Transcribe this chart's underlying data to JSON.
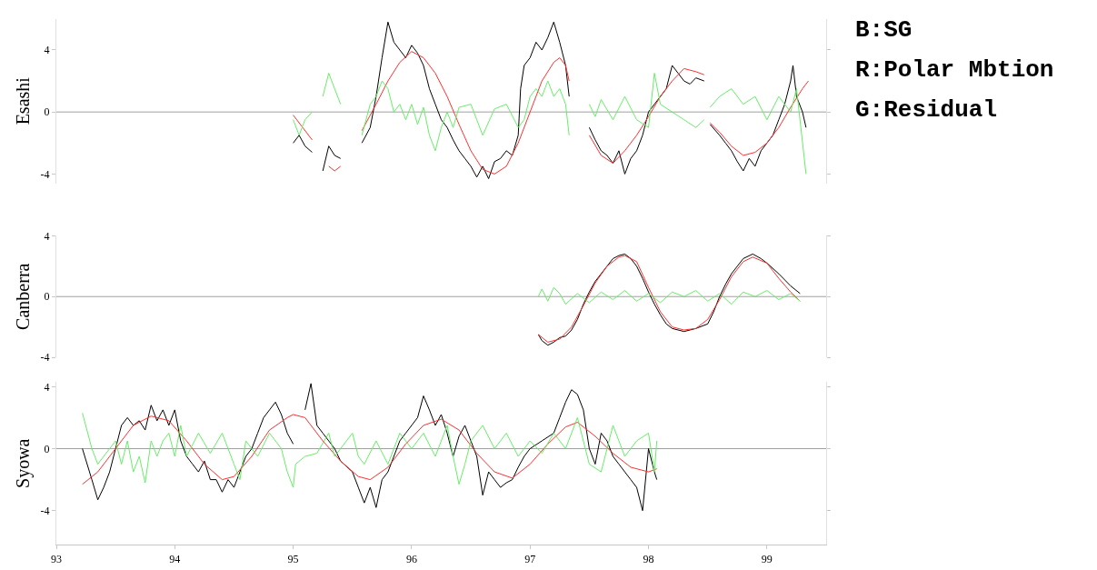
{
  "chart_data": [
    {
      "type": "line",
      "ylabel": "Esashi",
      "xlim": [
        93,
        99.5
      ],
      "ylim": [
        -4.6,
        6
      ],
      "yticks": [
        -4,
        0,
        4
      ],
      "xticks": [
        93,
        94,
        95,
        96,
        97,
        98,
        99
      ],
      "tick_labels": "y",
      "grid": false,
      "annotations": [
        "B:SG",
        "R:Polar Mbtion",
        "G:Residual"
      ],
      "ref_lines": [
        {
          "axis": "y",
          "value": 0,
          "color": "#a0a0a0"
        }
      ],
      "series": [
        {
          "color": "#000000",
          "x": [
            95.0,
            95.05,
            95.1,
            95.16,
            95.2,
            95.25,
            95.3,
            95.35,
            95.4,
            95.5,
            95.58,
            95.65,
            95.7,
            95.75,
            95.8,
            95.85,
            95.9,
            95.95,
            96.0,
            96.05,
            96.1,
            96.15,
            96.2,
            96.25,
            96.3,
            96.35,
            96.4,
            96.45,
            96.5,
            96.55,
            96.6,
            96.65,
            96.7,
            96.75,
            96.8,
            96.85,
            96.9,
            96.92,
            96.95,
            97.0,
            97.05,
            97.1,
            97.15,
            97.2,
            97.25,
            97.3,
            97.33,
            97.4,
            97.5,
            97.55,
            97.6,
            97.65,
            97.7,
            97.75,
            97.8,
            97.85,
            97.9,
            97.95,
            98.0,
            98.05,
            98.1,
            98.15,
            98.2,
            98.25,
            98.3,
            98.35,
            98.4,
            98.47,
            98.5,
            98.52,
            98.6,
            98.65,
            98.7,
            98.75,
            98.8,
            98.85,
            98.9,
            98.95,
            99.0,
            99.05,
            99.1,
            99.15,
            99.2,
            99.22,
            99.25,
            99.3,
            99.33
          ],
          "values": [
            -2.0,
            -1.5,
            -2.2,
            -2.6,
            null,
            -3.8,
            -2.2,
            -2.8,
            -3.0,
            null,
            -2.0,
            -1.0,
            1.0,
            3.5,
            5.8,
            4.5,
            4.0,
            3.5,
            4.3,
            3.8,
            3.0,
            1.5,
            0.5,
            -0.5,
            -1.0,
            -1.8,
            -2.5,
            -3.0,
            -3.5,
            -4.2,
            -3.5,
            -4.3,
            -3.2,
            -3.0,
            -2.5,
            -2.8,
            -1.5,
            1.5,
            3.0,
            3.5,
            4.5,
            4.0,
            4.8,
            5.8,
            4.5,
            3.0,
            1.0,
            null,
            -1.0,
            -1.8,
            -2.5,
            -2.8,
            -3.3,
            -2.5,
            -4.0,
            -3.0,
            -2.5,
            -1.5,
            0.0,
            0.5,
            1.0,
            1.5,
            3.0,
            2.5,
            2.0,
            1.8,
            2.2,
            2.0,
            null,
            -0.8,
            -1.5,
            -2.0,
            -2.5,
            -3.2,
            -3.8,
            -3.0,
            -3.5,
            -2.5,
            -2.0,
            -1.5,
            -0.5,
            0.5,
            2.0,
            3.0,
            1.0,
            0.0,
            -1.0
          ]
        },
        {
          "color": "#ff3030",
          "x": [
            95.0,
            95.08,
            95.16,
            95.2,
            95.3,
            95.35,
            95.4,
            95.5,
            95.58,
            95.7,
            95.8,
            95.9,
            96.0,
            96.1,
            96.2,
            96.3,
            96.4,
            96.5,
            96.6,
            96.7,
            96.8,
            96.9,
            97.0,
            97.1,
            97.2,
            97.25,
            97.3,
            97.33,
            97.4,
            97.5,
            97.6,
            97.7,
            97.8,
            97.9,
            98.0,
            98.1,
            98.2,
            98.3,
            98.4,
            98.47,
            98.5,
            98.52,
            98.6,
            98.7,
            98.8,
            98.9,
            99.0,
            99.1,
            99.2,
            99.3,
            99.35
          ],
          "values": [
            -0.2,
            -1.0,
            -1.8,
            null,
            -3.5,
            -3.8,
            -3.5,
            null,
            -1.2,
            0.5,
            2.0,
            3.2,
            3.9,
            3.5,
            2.5,
            1.0,
            -0.8,
            -2.5,
            -3.7,
            -4.0,
            -3.5,
            -2.0,
            0.0,
            2.0,
            3.2,
            3.5,
            3.0,
            2.0,
            null,
            -1.5,
            -2.8,
            -3.3,
            -2.5,
            -1.5,
            -0.3,
            1.0,
            2.0,
            2.8,
            2.6,
            2.4,
            null,
            -0.7,
            -1.3,
            -2.2,
            -2.8,
            -2.6,
            -2.0,
            -1.0,
            0.3,
            1.5,
            2.0
          ]
        },
        {
          "color": "#66ee66",
          "x": [
            95.0,
            95.05,
            95.1,
            95.16,
            95.2,
            95.25,
            95.3,
            95.35,
            95.4,
            95.5,
            95.58,
            95.65,
            95.7,
            95.75,
            95.8,
            95.85,
            95.9,
            95.95,
            96.0,
            96.05,
            96.1,
            96.15,
            96.2,
            96.25,
            96.3,
            96.35,
            96.4,
            96.5,
            96.55,
            96.6,
            96.7,
            96.8,
            96.9,
            96.95,
            97.0,
            97.05,
            97.1,
            97.15,
            97.2,
            97.25,
            97.3,
            97.33,
            97.4,
            97.5,
            97.55,
            97.6,
            97.7,
            97.8,
            97.9,
            98.0,
            98.05,
            98.1,
            98.2,
            98.3,
            98.4,
            98.47,
            98.5,
            98.52,
            98.6,
            98.7,
            98.8,
            98.9,
            99.0,
            99.1,
            99.2,
            99.25,
            99.33
          ],
          "values": [
            -0.5,
            -1.5,
            -0.5,
            0.0,
            null,
            1.0,
            2.5,
            1.5,
            0.5,
            null,
            -1.5,
            0.5,
            1.0,
            2.0,
            1.5,
            0.0,
            0.5,
            -0.5,
            0.5,
            -0.8,
            0.3,
            -1.5,
            -2.5,
            -1.0,
            0.0,
            -1.0,
            0.3,
            0.5,
            -0.5,
            -1.5,
            0.2,
            0.5,
            -1.0,
            -0.5,
            1.0,
            1.5,
            1.0,
            2.0,
            1.0,
            1.5,
            0.5,
            -1.5,
            null,
            0.5,
            -0.3,
            0.8,
            -0.5,
            1.0,
            -0.5,
            -1.0,
            2.5,
            0.5,
            0.0,
            -0.5,
            -1.0,
            -0.5,
            null,
            0.3,
            1.0,
            1.5,
            0.5,
            1.0,
            -0.5,
            1.0,
            0.0,
            1.5,
            -4.0
          ]
        }
      ]
    },
    {
      "type": "line",
      "ylabel": "Canberra",
      "xlim": [
        93,
        99.5
      ],
      "ylim": [
        -4,
        4
      ],
      "yticks": [
        -4,
        0,
        4
      ],
      "xticks": [
        93,
        94,
        95,
        96,
        97,
        98,
        99
      ],
      "tick_labels": "y",
      "grid": false,
      "ref_lines": [
        {
          "axis": "y",
          "value": 0,
          "color": "#a0a0a0"
        }
      ],
      "series": [
        {
          "color": "#000000",
          "x": [
            97.07,
            97.1,
            97.15,
            97.2,
            97.25,
            97.3,
            97.35,
            97.4,
            97.45,
            97.5,
            97.55,
            97.6,
            97.65,
            97.7,
            97.75,
            97.8,
            97.85,
            97.9,
            97.95,
            98.0,
            98.05,
            98.1,
            98.15,
            98.2,
            98.3,
            98.4,
            98.5,
            98.55,
            98.6,
            98.65,
            98.7,
            98.75,
            98.8,
            98.88,
            98.95,
            99.0,
            99.1,
            99.2,
            99.28
          ],
          "values": [
            -2.5,
            -2.9,
            -3.2,
            -3.0,
            -2.7,
            -2.6,
            -2.2,
            -1.5,
            -0.5,
            0.3,
            1.0,
            1.5,
            2.0,
            2.5,
            2.7,
            2.8,
            2.5,
            2.0,
            1.2,
            0.3,
            -0.5,
            -1.2,
            -1.8,
            -2.1,
            -2.3,
            -2.1,
            -1.8,
            -1.0,
            0.0,
            0.8,
            1.5,
            2.0,
            2.5,
            2.8,
            2.5,
            2.2,
            1.5,
            0.7,
            0.2
          ]
        },
        {
          "color": "#ff3030",
          "x": [
            97.07,
            97.15,
            97.25,
            97.35,
            97.45,
            97.55,
            97.65,
            97.75,
            97.8,
            97.9,
            98.0,
            98.1,
            98.2,
            98.3,
            98.4,
            98.5,
            98.6,
            98.7,
            98.8,
            98.88,
            99.0,
            99.1,
            99.2,
            99.28
          ],
          "values": [
            -2.5,
            -3.0,
            -2.8,
            -2.0,
            -0.6,
            0.9,
            2.0,
            2.6,
            2.7,
            2.3,
            0.6,
            -1.0,
            -2.0,
            -2.2,
            -2.1,
            -1.5,
            -0.2,
            1.3,
            2.3,
            2.6,
            2.2,
            1.2,
            0.3,
            -0.3
          ]
        },
        {
          "color": "#66ee66",
          "x": [
            97.07,
            97.1,
            97.15,
            97.2,
            97.25,
            97.3,
            97.4,
            97.5,
            97.6,
            97.7,
            97.8,
            97.9,
            98.0,
            98.1,
            98.2,
            98.3,
            98.4,
            98.5,
            98.6,
            98.7,
            98.8,
            98.9,
            99.0,
            99.1,
            99.2,
            99.28
          ],
          "values": [
            0.0,
            0.5,
            -0.3,
            0.6,
            0.2,
            -0.5,
            0.2,
            -0.4,
            0.3,
            -0.2,
            0.4,
            -0.3,
            0.2,
            -0.4,
            0.3,
            0.0,
            0.4,
            -0.3,
            0.2,
            -0.5,
            0.3,
            0.0,
            0.4,
            -0.2,
            0.2,
            -0.3
          ]
        }
      ]
    },
    {
      "type": "line",
      "ylabel": "Syowa",
      "xlim": [
        93,
        99.5
      ],
      "ylim": [
        -6.2,
        4.3
      ],
      "yticks": [
        -4,
        0,
        4
      ],
      "xticks": [
        93,
        94,
        95,
        96,
        97,
        98,
        99
      ],
      "grid": false,
      "ref_lines": [
        {
          "axis": "y",
          "value": 0,
          "color": "#a0a0a0"
        }
      ],
      "series": [
        {
          "color": "#000000",
          "x": [
            93.22,
            93.3,
            93.35,
            93.4,
            93.45,
            93.5,
            93.55,
            93.6,
            93.65,
            93.7,
            93.75,
            93.8,
            93.85,
            93.9,
            93.95,
            94.0,
            94.05,
            94.1,
            94.15,
            94.2,
            94.25,
            94.3,
            94.35,
            94.4,
            94.45,
            94.5,
            94.55,
            94.6,
            94.65,
            94.7,
            94.75,
            94.8,
            94.85,
            94.9,
            94.95,
            95.0,
            95.05,
            95.1,
            95.15,
            95.2,
            95.25,
            95.3,
            95.35,
            95.4,
            95.5,
            95.55,
            95.6,
            95.65,
            95.7,
            95.75,
            95.8,
            95.85,
            95.9,
            95.95,
            96.0,
            96.05,
            96.1,
            96.15,
            96.2,
            96.25,
            96.3,
            96.35,
            96.4,
            96.45,
            96.5,
            96.55,
            96.6,
            96.65,
            96.7,
            96.75,
            96.8,
            96.85,
            96.9,
            96.95,
            97.0,
            97.1,
            97.2,
            97.25,
            97.3,
            97.35,
            97.4,
            97.45,
            97.5,
            97.55,
            97.6,
            97.65,
            97.7,
            97.75,
            97.8,
            97.85,
            97.9,
            97.95,
            98.0,
            98.05,
            98.07
          ],
          "values": [
            0.0,
            -2.0,
            -3.3,
            -2.5,
            -1.5,
            0.0,
            1.5,
            2.0,
            1.5,
            1.8,
            1.2,
            2.8,
            1.8,
            2.5,
            1.5,
            2.5,
            0.5,
            -0.5,
            -1.0,
            -1.5,
            -0.8,
            -2.0,
            -2.0,
            -2.8,
            -2.0,
            -2.5,
            -1.5,
            -0.5,
            0.0,
            1.0,
            2.0,
            2.5,
            3.0,
            2.2,
            1.0,
            0.3,
            null,
            2.5,
            4.2,
            1.5,
            1.0,
            0.5,
            0.0,
            -0.8,
            -1.5,
            -2.5,
            -3.5,
            -2.5,
            -3.8,
            -2.0,
            -1.5,
            -0.5,
            0.5,
            1.0,
            1.5,
            2.0,
            3.4,
            2.5,
            1.5,
            2.2,
            1.0,
            -0.5,
            0.8,
            1.5,
            0.5,
            -0.5,
            -3.0,
            -1.5,
            -2.0,
            -2.5,
            -2.2,
            -2.0,
            -1.2,
            -0.5,
            0.0,
            0.5,
            1.0,
            2.0,
            3.0,
            3.8,
            3.5,
            2.5,
            0.0,
            -1.0,
            1.0,
            0.5,
            -0.5,
            -1.0,
            -1.5,
            -2.0,
            -2.5,
            -4.0,
            0.0,
            -1.5,
            -2.0
          ]
        },
        {
          "color": "#ff3030",
          "x": [
            93.22,
            93.35,
            93.5,
            93.65,
            93.8,
            93.95,
            94.1,
            94.25,
            94.4,
            94.5,
            94.65,
            94.8,
            94.95,
            95.0,
            95.1,
            95.25,
            95.4,
            95.55,
            95.65,
            95.8,
            95.95,
            96.1,
            96.25,
            96.4,
            96.55,
            96.7,
            96.85,
            97.0,
            97.15,
            97.3,
            97.4,
            97.55,
            97.7,
            97.85,
            98.0,
            98.07
          ],
          "values": [
            -2.3,
            -1.5,
            0.0,
            1.5,
            2.1,
            1.8,
            0.5,
            -1.0,
            -2.0,
            -1.8,
            -0.5,
            1.2,
            2.0,
            2.2,
            2.0,
            0.5,
            -0.8,
            -1.8,
            -2.0,
            -1.2,
            0.3,
            1.5,
            1.9,
            1.2,
            -0.3,
            -1.5,
            -1.9,
            -1.0,
            0.3,
            1.4,
            1.7,
            0.8,
            -0.3,
            -1.2,
            -1.5,
            -1.3
          ]
        },
        {
          "color": "#66ee66",
          "x": [
            93.22,
            93.3,
            93.35,
            93.4,
            93.5,
            93.55,
            93.6,
            93.65,
            93.7,
            93.75,
            93.8,
            93.85,
            93.9,
            93.95,
            94.0,
            94.05,
            94.1,
            94.2,
            94.3,
            94.4,
            94.5,
            94.55,
            94.6,
            94.7,
            94.8,
            94.9,
            94.95,
            95.0,
            95.02,
            95.1,
            95.2,
            95.3,
            95.35,
            95.45,
            95.5,
            95.55,
            95.6,
            95.7,
            95.8,
            95.85,
            95.9,
            96.0,
            96.1,
            96.2,
            96.3,
            96.35,
            96.4,
            96.45,
            96.5,
            96.6,
            96.7,
            96.8,
            96.9,
            97.0,
            97.1,
            97.2,
            97.3,
            97.4,
            97.45,
            97.5,
            97.6,
            97.7,
            97.8,
            97.9,
            98.0,
            98.05,
            98.07
          ],
          "values": [
            2.3,
            0.0,
            -1.0,
            -0.5,
            0.5,
            -1.0,
            0.5,
            -1.5,
            -0.5,
            -2.2,
            0.5,
            -0.5,
            0.5,
            1.0,
            -0.5,
            1.5,
            -0.5,
            1.0,
            -0.3,
            1.0,
            -1.0,
            -2.0,
            0.5,
            -0.5,
            1.0,
            0.0,
            -1.5,
            -2.5,
            -1.0,
            -0.5,
            -0.3,
            1.0,
            -0.5,
            0.5,
            1.0,
            -0.5,
            -1.0,
            0.5,
            -1.0,
            0.0,
            1.0,
            0.0,
            1.0,
            -0.5,
            1.5,
            -0.5,
            -2.3,
            -1.0,
            0.5,
            1.5,
            0.0,
            1.0,
            -0.5,
            0.5,
            -0.3,
            1.0,
            0.0,
            2.0,
            0.5,
            -1.0,
            -1.5,
            1.5,
            -0.5,
            0.5,
            1.0,
            -1.5,
            0.5
          ]
        }
      ]
    }
  ]
}
